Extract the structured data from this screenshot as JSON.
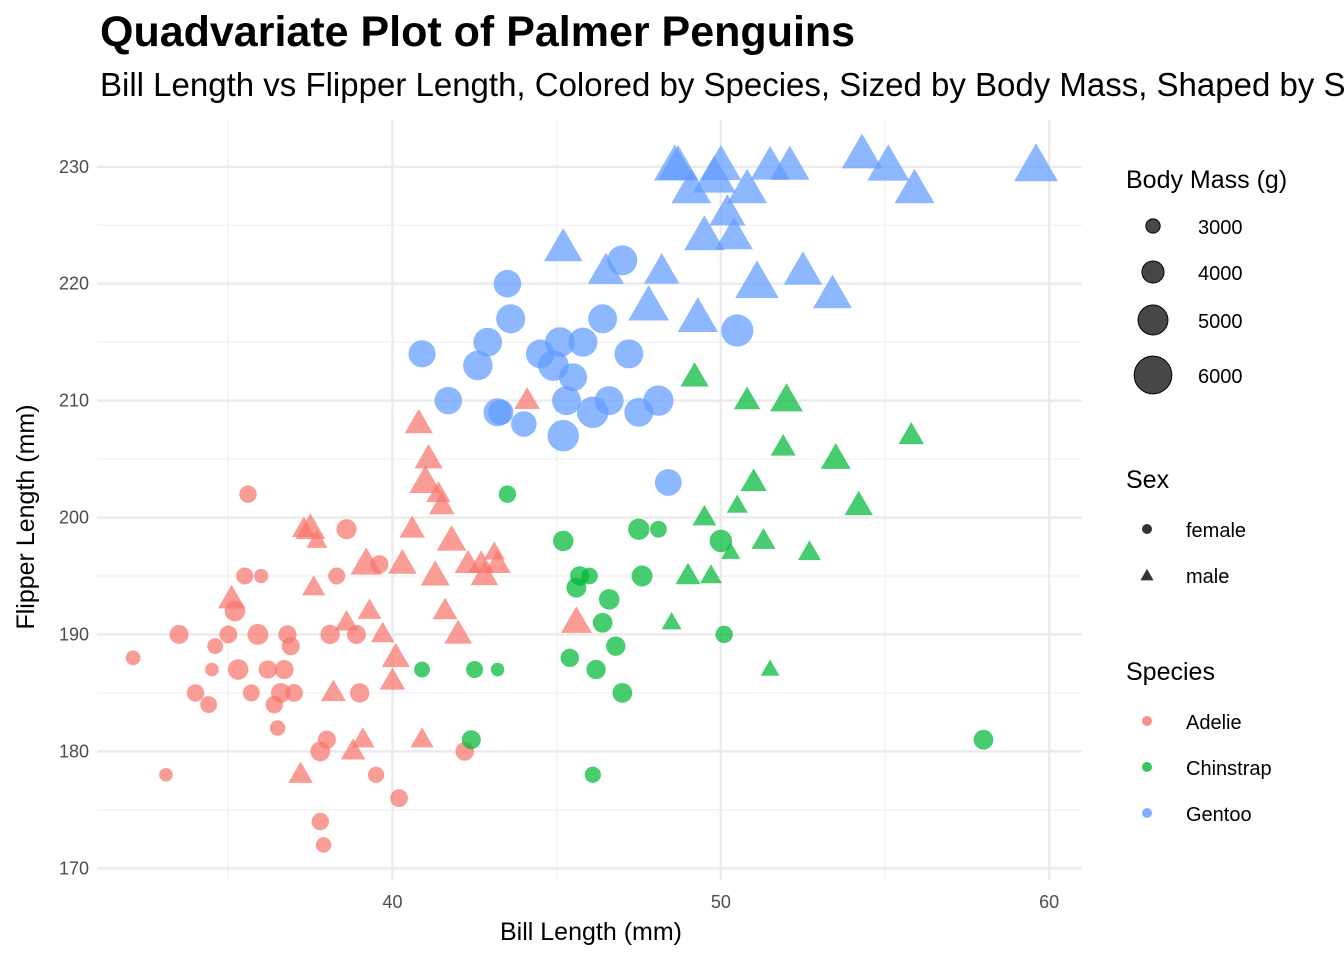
{
  "title": "Quadvariate Plot of Palmer Penguins",
  "subtitle": "Bill Length vs Flipper Length, Colored by Species, Sized by Body Mass, Shaped by Sex",
  "chart_data": {
    "type": "scatter",
    "title": "Quadvariate Plot of Palmer Penguins",
    "subtitle": "Bill Length vs Flipper Length, Colored by Species, Sized by Body Mass, Shaped by Sex",
    "xlabel": "Bill Length (mm)",
    "ylabel": "Flipper Length (mm)",
    "xlim": [
      31,
      61
    ],
    "ylim": [
      169,
      234
    ],
    "x_ticks": [
      40,
      50,
      60
    ],
    "y_ticks": [
      170,
      180,
      190,
      200,
      210,
      220,
      230
    ],
    "grid": true,
    "legend_position": "right",
    "colors": {
      "Adelie": "#F8766D",
      "Chinstrap": "#00BA38",
      "Gentoo": "#619CFF"
    },
    "size_legend": {
      "title": "Body Mass (g)",
      "values": [
        3000,
        4000,
        5000,
        6000
      ]
    },
    "shape_legend": {
      "title": "Sex",
      "entries": [
        {
          "label": "female",
          "shape": "circle"
        },
        {
          "label": "male",
          "shape": "triangle"
        }
      ]
    },
    "color_legend": {
      "title": "Species",
      "entries": [
        "Adelie",
        "Chinstrap",
        "Gentoo"
      ]
    },
    "series": [
      {
        "name": "Adelie",
        "color": "#F8766D",
        "points": [
          [
            32.1,
            188,
            3050,
            "f"
          ],
          [
            33.1,
            178,
            2900,
            "f"
          ],
          [
            33.5,
            190,
            3600,
            "f"
          ],
          [
            34,
            185,
            3400,
            "f"
          ],
          [
            34.4,
            184,
            3325,
            "f"
          ],
          [
            34.5,
            187,
            2900,
            "f"
          ],
          [
            34.6,
            189,
            3200,
            "f"
          ],
          [
            35,
            190,
            3450,
            "f"
          ],
          [
            35.1,
            193,
            4200,
            "m"
          ],
          [
            35.2,
            192,
            3800,
            "f"
          ],
          [
            35.3,
            187,
            3800,
            "f"
          ],
          [
            35.5,
            195,
            3350,
            "f"
          ],
          [
            35.6,
            202,
            3400,
            "f"
          ],
          [
            35.7,
            185,
            3350,
            "f"
          ],
          [
            35.9,
            190,
            3850,
            "f"
          ],
          [
            36,
            195,
            3000,
            "f"
          ],
          [
            36.2,
            187,
            3525,
            "f"
          ],
          [
            36.4,
            184,
            3400,
            "f"
          ],
          [
            36.5,
            182,
            3150,
            "f"
          ],
          [
            36.6,
            185,
            3700,
            "f"
          ],
          [
            36.7,
            187,
            3600,
            "f"
          ],
          [
            36.8,
            190,
            3500,
            "f"
          ],
          [
            36.9,
            189,
            3500,
            "f"
          ],
          [
            37,
            185,
            3450,
            "f"
          ],
          [
            37.2,
            178,
            3900,
            "m"
          ],
          [
            37.3,
            199,
            3800,
            "m"
          ],
          [
            37.5,
            199,
            4475,
            "m"
          ],
          [
            37.6,
            194,
            3750,
            "m"
          ],
          [
            37.7,
            198,
            3500,
            "m"
          ],
          [
            37.8,
            174,
            3400,
            "f"
          ],
          [
            37.9,
            172,
            3150,
            "f"
          ],
          [
            38,
            181,
            3500,
            "f"
          ],
          [
            38.1,
            190,
            3650,
            "f"
          ],
          [
            38.2,
            185,
            3950,
            "m"
          ],
          [
            38.3,
            195,
            3350,
            "f"
          ],
          [
            38.6,
            199,
            3750,
            "f"
          ],
          [
            38.8,
            180,
            3900,
            "m"
          ],
          [
            39,
            185,
            3650,
            "f"
          ],
          [
            39.1,
            181,
            3750,
            "m"
          ],
          [
            39.2,
            196,
            4675,
            "m"
          ],
          [
            39.5,
            178,
            3250,
            "f"
          ],
          [
            39.6,
            196,
            3500,
            "f"
          ],
          [
            39.7,
            190,
            3800,
            "m"
          ],
          [
            40,
            186,
            4000,
            "m"
          ],
          [
            40.1,
            188,
            4300,
            "m"
          ],
          [
            40.2,
            176,
            3450,
            "f"
          ],
          [
            40.3,
            196,
            4350,
            "m"
          ],
          [
            40.6,
            199,
            4000,
            "m"
          ],
          [
            40.8,
            208,
            4300,
            "m"
          ],
          [
            40.9,
            181,
            3750,
            "m"
          ],
          [
            41,
            203,
            4725,
            "m"
          ],
          [
            41.1,
            205,
            4300,
            "m"
          ],
          [
            41.3,
            195,
            4400,
            "m"
          ],
          [
            41.4,
            202,
            3875,
            "m"
          ],
          [
            41.5,
            201,
            4000,
            "m"
          ],
          [
            41.6,
            192,
            3950,
            "m"
          ],
          [
            41.8,
            198,
            4450,
            "m"
          ],
          [
            42,
            190,
            4250,
            "m"
          ],
          [
            42.2,
            180,
            3550,
            "f"
          ],
          [
            42.3,
            196,
            4150,
            "m"
          ],
          [
            42.7,
            196,
            4075,
            "m"
          ],
          [
            42.8,
            195,
            4250,
            "m"
          ],
          [
            43.1,
            197,
            3500,
            "m"
          ],
          [
            43.2,
            196,
            4100,
            "m"
          ],
          [
            44.1,
            210,
            4000,
            "m"
          ],
          [
            45.6,
            191,
            4600,
            "m"
          ],
          [
            38.6,
            191,
            3800,
            "m"
          ],
          [
            37.8,
            180,
            3700,
            "f"
          ],
          [
            39.3,
            192,
            3800,
            "m"
          ],
          [
            38.9,
            190,
            3600,
            "f"
          ]
        ]
      },
      {
        "name": "Chinstrap",
        "color": "#00BA38",
        "points": [
          [
            40.9,
            187,
            3200,
            "f"
          ],
          [
            42.4,
            181,
            3600,
            "f"
          ],
          [
            42.5,
            187,
            3350,
            "f"
          ],
          [
            43.2,
            187,
            2900,
            "f"
          ],
          [
            43.5,
            202,
            3400,
            "f"
          ],
          [
            45.2,
            198,
            3800,
            "f"
          ],
          [
            45.4,
            188,
            3525,
            "f"
          ],
          [
            45.6,
            194,
            3725,
            "f"
          ],
          [
            45.7,
            195,
            3650,
            "f"
          ],
          [
            46,
            195,
            3300,
            "f"
          ],
          [
            46.1,
            178,
            3250,
            "f"
          ],
          [
            46.2,
            187,
            3650,
            "f"
          ],
          [
            46.4,
            191,
            3700,
            "f"
          ],
          [
            46.6,
            193,
            3800,
            "f"
          ],
          [
            46.8,
            189,
            3650,
            "f"
          ],
          [
            47,
            185,
            3700,
            "f"
          ],
          [
            47.5,
            199,
            3900,
            "f"
          ],
          [
            47.6,
            195,
            3850,
            "f"
          ],
          [
            48.1,
            199,
            3325,
            "f"
          ],
          [
            48.5,
            191,
            3400,
            "m"
          ],
          [
            49,
            195,
            3950,
            "m"
          ],
          [
            49.2,
            212,
            4300,
            "m"
          ],
          [
            49.5,
            200,
            3800,
            "m"
          ],
          [
            49.7,
            195,
            3600,
            "m"
          ],
          [
            50,
            198,
            4050,
            "f"
          ],
          [
            50.1,
            190,
            3400,
            "f"
          ],
          [
            50.3,
            197,
            3300,
            "m"
          ],
          [
            50.5,
            201,
            3500,
            "m"
          ],
          [
            50.8,
            210,
            4100,
            "m"
          ],
          [
            51,
            203,
            4100,
            "m"
          ],
          [
            51.3,
            198,
            3850,
            "m"
          ],
          [
            51.5,
            187,
            3250,
            "m"
          ],
          [
            51.9,
            206,
            3950,
            "m"
          ],
          [
            52,
            210,
            4800,
            "m"
          ],
          [
            52.7,
            197,
            3725,
            "m"
          ],
          [
            53.5,
            205,
            4500,
            "m"
          ],
          [
            54.2,
            201,
            4300,
            "m"
          ],
          [
            55.8,
            207,
            4000,
            "m"
          ],
          [
            58,
            181,
            3700,
            "f"
          ]
        ]
      },
      {
        "name": "Gentoo",
        "color": "#619CFF",
        "points": [
          [
            40.9,
            214,
            4650,
            "f"
          ],
          [
            41.7,
            210,
            4700,
            "f"
          ],
          [
            42.6,
            213,
            4950,
            "f"
          ],
          [
            42.9,
            215,
            4850,
            "f"
          ],
          [
            43.2,
            209,
            4775,
            "f"
          ],
          [
            43.3,
            209,
            4400,
            "f"
          ],
          [
            43.5,
            220,
            4700,
            "f"
          ],
          [
            43.6,
            217,
            4900,
            "f"
          ],
          [
            44,
            208,
            4450,
            "f"
          ],
          [
            44.5,
            214,
            4850,
            "f"
          ],
          [
            44.9,
            213,
            5100,
            "f"
          ],
          [
            45.1,
            215,
            5000,
            "f"
          ],
          [
            45.2,
            207,
            5200,
            "f"
          ],
          [
            45.3,
            210,
            4875,
            "f"
          ],
          [
            45.5,
            212,
            4750,
            "f"
          ],
          [
            45.8,
            215,
            4900,
            "f"
          ],
          [
            46.1,
            209,
            5200,
            "f"
          ],
          [
            46.4,
            217,
            4875,
            "f"
          ],
          [
            46.6,
            210,
            4875,
            "f"
          ],
          [
            47,
            222,
            5000,
            "f"
          ],
          [
            47.2,
            214,
            4875,
            "f"
          ],
          [
            47.5,
            209,
            4875,
            "f"
          ],
          [
            48.1,
            210,
            5050,
            "f"
          ],
          [
            48.4,
            203,
            4600,
            "f"
          ],
          [
            50.5,
            216,
            5300,
            "f"
          ],
          [
            45.2,
            223,
            5450,
            "m"
          ],
          [
            46.5,
            221,
            5200,
            "m"
          ],
          [
            47.8,
            218,
            5700,
            "m"
          ],
          [
            48.2,
            221,
            5100,
            "m"
          ],
          [
            48.7,
            230,
            5650,
            "m"
          ],
          [
            49.1,
            228,
            5600,
            "m"
          ],
          [
            49.5,
            224,
            5650,
            "m"
          ],
          [
            49.8,
            229,
            5950,
            "m"
          ],
          [
            50,
            230,
            5700,
            "m"
          ],
          [
            50.4,
            224,
            5350,
            "m"
          ],
          [
            50.8,
            228,
            5600,
            "m"
          ],
          [
            51.1,
            220,
            6000,
            "m"
          ],
          [
            51.5,
            230,
            5500,
            "m"
          ],
          [
            52.1,
            230,
            5550,
            "m"
          ],
          [
            52.5,
            221,
            5450,
            "m"
          ],
          [
            53.4,
            219,
            5500,
            "m"
          ],
          [
            54.3,
            231,
            5650,
            "m"
          ],
          [
            55.1,
            230,
            5850,
            "m"
          ],
          [
            55.9,
            228,
            5600,
            "m"
          ],
          [
            59.6,
            230,
            6050,
            "m"
          ],
          [
            49.3,
            217,
            5650,
            "m"
          ],
          [
            48.6,
            230,
            5800,
            "m"
          ],
          [
            50.2,
            226,
            5200,
            "m"
          ]
        ]
      }
    ]
  }
}
